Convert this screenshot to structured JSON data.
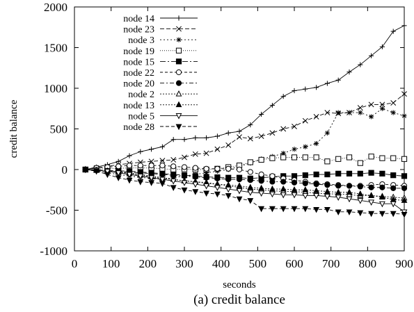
{
  "chart_data": {
    "type": "line",
    "title": "",
    "caption": "(a) credit balance",
    "xlabel": "seconds",
    "ylabel": "credit balance",
    "xlim": [
      0,
      900
    ],
    "ylim": [
      -1000,
      2000
    ],
    "xticks": [
      0,
      100,
      200,
      300,
      400,
      500,
      600,
      700,
      800,
      900
    ],
    "yticks": [
      -1000,
      -500,
      0,
      500,
      1000,
      1500,
      2000
    ],
    "grid": false,
    "legend_position": "top-left",
    "x": [
      30,
      60,
      90,
      120,
      150,
      180,
      210,
      240,
      270,
      300,
      330,
      360,
      390,
      420,
      450,
      480,
      510,
      540,
      570,
      600,
      630,
      660,
      690,
      720,
      750,
      780,
      810,
      840,
      870,
      900
    ],
    "series": [
      {
        "name": "node 14",
        "marker": "plus",
        "dash": "",
        "values": [
          0,
          30,
          60,
          100,
          170,
          220,
          250,
          280,
          370,
          370,
          390,
          390,
          410,
          450,
          470,
          550,
          680,
          790,
          900,
          970,
          990,
          1010,
          1060,
          1100,
          1200,
          1290,
          1400,
          1510,
          1700,
          1770
        ]
      },
      {
        "name": "node 23",
        "marker": "cross",
        "dash": "6,3",
        "values": [
          0,
          20,
          40,
          60,
          75,
          90,
          100,
          110,
          120,
          150,
          190,
          200,
          250,
          300,
          400,
          380,
          410,
          450,
          500,
          530,
          600,
          650,
          700,
          690,
          700,
          760,
          800,
          800,
          820,
          930
        ]
      },
      {
        "name": "node 3",
        "marker": "star",
        "dash": "2,3",
        "values": [
          0,
          -15,
          -40,
          -60,
          -80,
          -95,
          -110,
          -120,
          -100,
          -80,
          -60,
          -40,
          -20,
          0,
          40,
          80,
          130,
          160,
          200,
          250,
          280,
          320,
          450,
          700,
          700,
          700,
          650,
          750,
          700,
          660
        ]
      },
      {
        "name": "node 19",
        "marker": "square-open",
        "dash": "1,2",
        "values": [
          0,
          5,
          10,
          15,
          20,
          20,
          20,
          10,
          0,
          5,
          0,
          0,
          10,
          30,
          50,
          90,
          120,
          140,
          150,
          150,
          150,
          150,
          100,
          130,
          150,
          80,
          160,
          140,
          140,
          130
        ]
      },
      {
        "name": "node 15",
        "marker": "square-filled",
        "dash": "8,3,2,3",
        "values": [
          0,
          -5,
          -10,
          -15,
          -20,
          -30,
          -40,
          -50,
          -60,
          -70,
          -80,
          -90,
          -95,
          -100,
          -100,
          -110,
          -100,
          -90,
          -80,
          -80,
          -70,
          -60,
          -60,
          -50,
          -50,
          -50,
          -40,
          -50,
          -70,
          -80
        ]
      },
      {
        "name": "node 22",
        "marker": "circle-open",
        "dash": "4,3",
        "values": [
          0,
          20,
          30,
          40,
          50,
          50,
          50,
          50,
          40,
          30,
          20,
          10,
          10,
          10,
          0,
          -30,
          -60,
          -80,
          -110,
          -130,
          -150,
          -170,
          -180,
          -190,
          -200,
          -200,
          -190,
          -180,
          -190,
          -200
        ]
      },
      {
        "name": "node 20",
        "marker": "circle-filled",
        "dash": "6,3,2,3",
        "values": [
          0,
          -5,
          -15,
          -25,
          -30,
          -40,
          -50,
          -60,
          -70,
          -80,
          -90,
          -100,
          -110,
          -120,
          -120,
          -130,
          -140,
          -150,
          -150,
          -160,
          -170,
          -180,
          -190,
          -200,
          -200,
          -210,
          -220,
          -220,
          -230,
          -230
        ]
      },
      {
        "name": "node 2",
        "marker": "triangle-open",
        "dash": "2,2",
        "values": [
          0,
          -10,
          -20,
          -30,
          -50,
          -70,
          -90,
          -110,
          -120,
          -140,
          -150,
          -170,
          -180,
          -200,
          -220,
          -240,
          -250,
          -260,
          -270,
          -270,
          -280,
          -290,
          -300,
          -300,
          -310,
          -320,
          -320,
          -330,
          -340,
          -350
        ]
      },
      {
        "name": "node 13",
        "marker": "triangle-filled",
        "dash": "2,2",
        "values": [
          0,
          -10,
          -20,
          -30,
          -40,
          -60,
          -80,
          -100,
          -120,
          -140,
          -150,
          -160,
          -180,
          -190,
          -200,
          -220,
          -230,
          -240,
          -240,
          -250,
          -250,
          -260,
          -270,
          -280,
          -280,
          -300,
          -320,
          -340,
          -370,
          -380
        ]
      },
      {
        "name": "node 5",
        "marker": "triangle-down-open",
        "dash": "",
        "values": [
          0,
          -10,
          -20,
          -40,
          -60,
          -80,
          -100,
          -120,
          -140,
          -160,
          -180,
          -200,
          -220,
          -240,
          -260,
          -280,
          -290,
          -300,
          -310,
          -310,
          -320,
          -320,
          -330,
          -340,
          -360,
          -380,
          -400,
          -420,
          -420,
          -520
        ]
      },
      {
        "name": "node 28",
        "marker": "triangle-down-filled",
        "dash": "5,3",
        "values": [
          0,
          -20,
          -60,
          -100,
          -130,
          -150,
          -160,
          -170,
          -220,
          -250,
          -270,
          -290,
          -300,
          -320,
          -360,
          -380,
          -480,
          -480,
          -480,
          -480,
          -480,
          -490,
          -490,
          -520,
          -520,
          -530,
          -540,
          -540,
          -540,
          -550
        ]
      }
    ]
  }
}
